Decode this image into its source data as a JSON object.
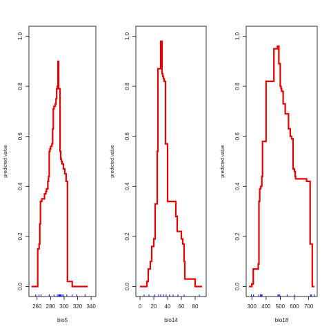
{
  "chart_data": [
    {
      "type": "line",
      "xlabel": "bio5",
      "ylabel": "predicted value",
      "xlim": [
        248,
        347
      ],
      "ylim": [
        -0.04,
        1.04
      ],
      "x_ticks": [
        260,
        280,
        300,
        320,
        340
      ],
      "y_ticks": [
        0.0,
        0.2,
        0.4,
        0.6,
        0.8,
        1.0
      ],
      "y_tick_labels": [
        "0.0",
        "0.2",
        "0.4",
        "0.6",
        "0.8",
        "1.0"
      ],
      "step_x": [
        252,
        261,
        261,
        263,
        263,
        264,
        264,
        265,
        265,
        267,
        267,
        271,
        271,
        273,
        273,
        274,
        274,
        276,
        276,
        277,
        277,
        278,
        278,
        279,
        279,
        280,
        280,
        282,
        282,
        283,
        283,
        284,
        284,
        285,
        285,
        287,
        287,
        288,
        288,
        289,
        289,
        290,
        290,
        291,
        291,
        292,
        292,
        293,
        293,
        294,
        294,
        295,
        295,
        296,
        296,
        297,
        297,
        299,
        299,
        301,
        301,
        303,
        303,
        305,
        305,
        306,
        306,
        308,
        308,
        310,
        310,
        312,
        312,
        326,
        326,
        335
      ],
      "step_y": [
        0.0,
        0.0,
        0.15,
        0.15,
        0.17,
        0.17,
        0.25,
        0.25,
        0.34,
        0.34,
        0.35,
        0.35,
        0.37,
        0.37,
        0.38,
        0.38,
        0.39,
        0.39,
        0.42,
        0.42,
        0.44,
        0.44,
        0.54,
        0.54,
        0.55,
        0.55,
        0.56,
        0.56,
        0.57,
        0.57,
        0.63,
        0.63,
        0.71,
        0.71,
        0.72,
        0.72,
        0.73,
        0.73,
        0.75,
        0.75,
        0.79,
        0.79,
        0.8,
        0.8,
        0.9,
        0.9,
        0.79,
        0.79,
        0.79,
        0.79,
        0.54,
        0.54,
        0.51,
        0.51,
        0.5,
        0.5,
        0.49,
        0.49,
        0.47,
        0.47,
        0.45,
        0.45,
        0.42,
        0.42,
        0.02,
        0.02,
        0.02,
        0.02,
        0.02,
        0.02,
        0.02,
        0.02,
        0.0,
        0.0,
        0.0,
        0.0
      ],
      "rug": [
        258,
        263,
        266,
        278,
        285,
        290,
        292,
        293,
        294,
        295,
        297,
        299,
        304,
        312,
        319,
        331
      ]
    },
    {
      "type": "line",
      "xlabel": "bio14",
      "ylabel": "predicted value",
      "xlim": [
        -6,
        96
      ],
      "ylim": [
        -0.04,
        1.04
      ],
      "x_ticks": [
        0,
        20,
        40,
        60,
        80
      ],
      "y_ticks": [
        0.0,
        0.2,
        0.4,
        0.6,
        0.8,
        1.0
      ],
      "y_tick_labels": [
        "0.0",
        "0.2",
        "0.4",
        "0.6",
        "0.8",
        "1.0"
      ],
      "step_x": [
        0,
        10,
        10,
        12,
        12,
        15,
        15,
        17,
        17,
        20,
        20,
        22,
        22,
        25,
        25,
        26,
        26,
        30,
        30,
        32,
        32,
        33,
        33,
        34,
        34,
        35,
        35,
        37,
        37,
        40,
        40,
        52,
        52,
        54,
        54,
        60,
        60,
        62,
        62,
        64,
        64,
        65,
        65,
        80,
        80,
        82,
        82,
        90
      ],
      "step_y": [
        0.0,
        0.0,
        0.02,
        0.02,
        0.07,
        0.07,
        0.1,
        0.1,
        0.16,
        0.16,
        0.19,
        0.19,
        0.33,
        0.33,
        0.54,
        0.54,
        0.87,
        0.87,
        0.98,
        0.98,
        0.85,
        0.85,
        0.84,
        0.84,
        0.83,
        0.83,
        0.82,
        0.82,
        0.57,
        0.57,
        0.34,
        0.34,
        0.28,
        0.28,
        0.22,
        0.22,
        0.19,
        0.19,
        0.17,
        0.17,
        0.1,
        0.1,
        0.03,
        0.03,
        0.0,
        0.0,
        0.0,
        0.0
      ],
      "rug": [
        6,
        13,
        21,
        27,
        30,
        34,
        38,
        43,
        48,
        55,
        64,
        86
      ]
    },
    {
      "type": "line",
      "xlabel": "bio18",
      "ylabel": "predicted value",
      "xlim": [
        260,
        760
      ],
      "ylim": [
        -0.04,
        1.04
      ],
      "x_ticks": [
        300,
        400,
        500,
        600,
        700
      ],
      "y_ticks": [
        0.0,
        0.2,
        0.4,
        0.6,
        0.8,
        1.0
      ],
      "y_tick_labels": [
        "0.0",
        "0.2",
        "0.4",
        "0.6",
        "0.8",
        "1.0"
      ],
      "step_x": [
        280,
        292,
        292,
        300,
        300,
        310,
        310,
        345,
        345,
        350,
        350,
        355,
        355,
        362,
        362,
        370,
        370,
        375,
        375,
        400,
        400,
        455,
        455,
        480,
        480,
        490,
        490,
        500,
        500,
        505,
        505,
        510,
        510,
        520,
        520,
        535,
        535,
        558,
        558,
        570,
        570,
        580,
        580,
        590,
        590,
        600,
        600,
        605,
        605,
        608,
        608,
        615,
        615,
        680,
        680,
        685,
        685,
        710,
        710,
        725,
        725,
        740
      ],
      "step_y": [
        0.0,
        0.0,
        0.0,
        0.0,
        0.01,
        0.01,
        0.07,
        0.07,
        0.09,
        0.09,
        0.34,
        0.34,
        0.39,
        0.39,
        0.4,
        0.4,
        0.44,
        0.44,
        0.58,
        0.58,
        0.82,
        0.82,
        0.95,
        0.95,
        0.96,
        0.96,
        0.89,
        0.89,
        0.8,
        0.8,
        0.79,
        0.79,
        0.78,
        0.78,
        0.73,
        0.73,
        0.69,
        0.69,
        0.63,
        0.63,
        0.6,
        0.6,
        0.59,
        0.59,
        0.47,
        0.47,
        0.46,
        0.46,
        0.44,
        0.44,
        0.43,
        0.43,
        0.43,
        0.43,
        0.43,
        0.43,
        0.42,
        0.42,
        0.17,
        0.17,
        0.0,
        0.0
      ],
      "rug": [
        296,
        312,
        348,
        360,
        367,
        372,
        483,
        490,
        497,
        548,
        600,
        713,
        720,
        740
      ]
    }
  ]
}
